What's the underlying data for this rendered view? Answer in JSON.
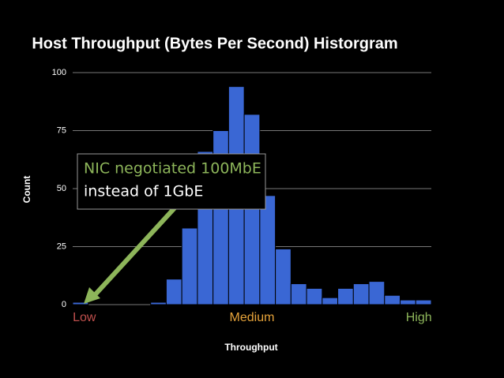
{
  "chart_data": {
    "type": "histogram",
    "title": "Host Throughput (Bytes Per Second) Historgram",
    "x_label": "Throughput",
    "y_label": "Count",
    "bins": [
      0,
      1,
      2,
      3,
      4,
      5,
      6,
      7,
      8,
      9,
      10,
      11,
      12,
      13,
      14,
      15,
      16,
      17,
      18,
      19,
      20,
      21,
      22,
      23
    ],
    "values": [
      1,
      0,
      0,
      0,
      0,
      1,
      11,
      33,
      66,
      75,
      94,
      82,
      47,
      24,
      9,
      7,
      3,
      7,
      9,
      10,
      4,
      2,
      2
    ],
    "color": "#3a67d4",
    "xlim": [
      0,
      23
    ],
    "xticks": [
      {
        "value": 0.75,
        "label": "Low"
      },
      {
        "value": 11.5,
        "label": "Medium"
      },
      {
        "value": 22.2,
        "label": "High"
      }
    ],
    "xtick_colors": [
      "#c0504d",
      "#e6a33a",
      "#8db55a"
    ],
    "ylim": [
      0,
      100
    ],
    "yticks": [
      0,
      25,
      50,
      75,
      100
    ],
    "grid": true,
    "annotation": {
      "lines": [
        "NIC negotiated 100MbE",
        "instead of 1GbE"
      ]
    }
  }
}
